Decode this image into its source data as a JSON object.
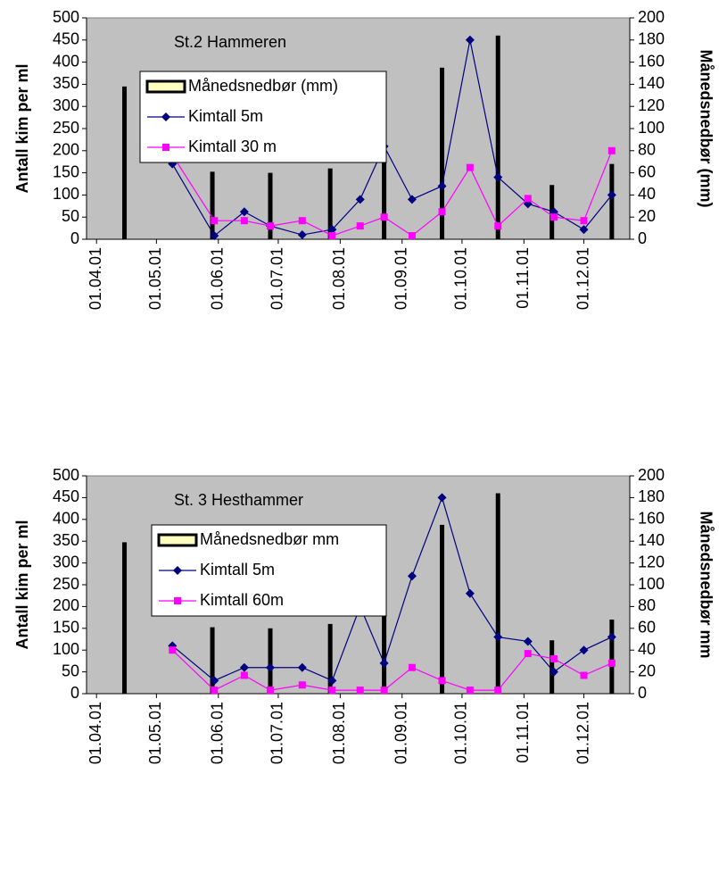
{
  "chart_data": [
    {
      "type": "combo",
      "title": "St.2 Hammeren",
      "y_label": "Antall kim per ml",
      "y2_label": "Månedsnedbør (mm)",
      "xlim": [
        -5,
        267
      ],
      "xticks": [
        {
          "value": 0,
          "label": "01.04.01"
        },
        {
          "value": 30,
          "label": "01.05.01"
        },
        {
          "value": 61,
          "label": "01.06.01"
        },
        {
          "value": 91,
          "label": "01.07.01"
        },
        {
          "value": 122,
          "label": "01.08.01"
        },
        {
          "value": 153,
          "label": "01.09.01"
        },
        {
          "value": 183,
          "label": "01.10.01"
        },
        {
          "value": 214,
          "label": "01.11.01"
        },
        {
          "value": 244,
          "label": "01.12.01"
        }
      ],
      "ylim": [
        0,
        500
      ],
      "yticks": [
        0,
        50,
        100,
        150,
        200,
        250,
        300,
        350,
        400,
        450,
        500
      ],
      "y2lim": [
        0,
        200
      ],
      "y2ticks": [
        0,
        20,
        40,
        60,
        80,
        100,
        120,
        140,
        160,
        180,
        200
      ],
      "series": [
        {
          "name": "Månedsnedbør (mm)",
          "kind": "bar",
          "axis": "y2",
          "color": "#000000",
          "x": [
            14,
            58,
            87,
            117,
            144,
            173,
            201,
            228,
            258
          ],
          "values": [
            138,
            61,
            60,
            64,
            100,
            155,
            184,
            49,
            68
          ]
        },
        {
          "name": "Kimtall 5m",
          "kind": "line",
          "marker": "diamond",
          "color": "#000080",
          "x": [
            38,
            59,
            74,
            87,
            103,
            118,
            132,
            144,
            158,
            173,
            187,
            201,
            216,
            229,
            244,
            258
          ],
          "values": [
            170,
            8,
            62,
            30,
            10,
            22,
            90,
            210,
            90,
            120,
            450,
            140,
            80,
            62,
            22,
            100
          ]
        },
        {
          "name": "Kimtall 30 m",
          "kind": "line",
          "marker": "square",
          "color": "#ff00ff",
          "x": [
            38,
            59,
            74,
            87,
            103,
            118,
            132,
            144,
            158,
            173,
            187,
            201,
            216,
            229,
            244,
            258
          ],
          "values": [
            190,
            42,
            42,
            30,
            42,
            8,
            30,
            50,
            8,
            62,
            162,
            30,
            92,
            50,
            42,
            200
          ]
        }
      ]
    },
    {
      "type": "combo",
      "title": "St. 3 Hesthammer",
      "y_label": "Antall kim per ml",
      "y2_label": "Månedsnedbør mm",
      "xlim": [
        -5,
        267
      ],
      "xticks": [
        {
          "value": 0,
          "label": "01.04.01"
        },
        {
          "value": 30,
          "label": "01.05.01"
        },
        {
          "value": 61,
          "label": "01.06.01"
        },
        {
          "value": 91,
          "label": "01.07.01"
        },
        {
          "value": 122,
          "label": "01.08.01"
        },
        {
          "value": 153,
          "label": "01.09.01"
        },
        {
          "value": 183,
          "label": "01.10.01"
        },
        {
          "value": 214,
          "label": "01.11.01"
        },
        {
          "value": 244,
          "label": "01.12.01"
        }
      ],
      "ylim": [
        0,
        500
      ],
      "yticks": [
        0,
        50,
        100,
        150,
        200,
        250,
        300,
        350,
        400,
        450,
        500
      ],
      "y2lim": [
        0,
        200
      ],
      "y2ticks": [
        0,
        20,
        40,
        60,
        80,
        100,
        120,
        140,
        160,
        180,
        200
      ],
      "series": [
        {
          "name": "Månedsnedbør mm",
          "kind": "bar",
          "axis": "y2",
          "color": "#000000",
          "x": [
            14,
            58,
            87,
            117,
            144,
            173,
            201,
            228,
            258
          ],
          "values": [
            139,
            61,
            60,
            64,
            100,
            155,
            184,
            49,
            68
          ]
        },
        {
          "name": "Kimtall 5m",
          "kind": "line",
          "marker": "diamond",
          "color": "#000080",
          "x": [
            38,
            59,
            74,
            87,
            103,
            118,
            132,
            144,
            158,
            173,
            187,
            201,
            216,
            229,
            244,
            258
          ],
          "values": [
            110,
            30,
            60,
            60,
            60,
            30,
            200,
            70,
            270,
            450,
            230,
            130,
            120,
            50,
            100,
            130
          ]
        },
        {
          "name": "Kimtall 60m",
          "kind": "line",
          "marker": "square",
          "color": "#ff00ff",
          "x": [
            38,
            59,
            74,
            87,
            103,
            118,
            132,
            144,
            158,
            173,
            187,
            201,
            216,
            229,
            244,
            258
          ],
          "values": [
            100,
            8,
            42,
            8,
            20,
            8,
            8,
            8,
            60,
            30,
            8,
            8,
            92,
            80,
            42,
            70
          ]
        }
      ]
    }
  ]
}
